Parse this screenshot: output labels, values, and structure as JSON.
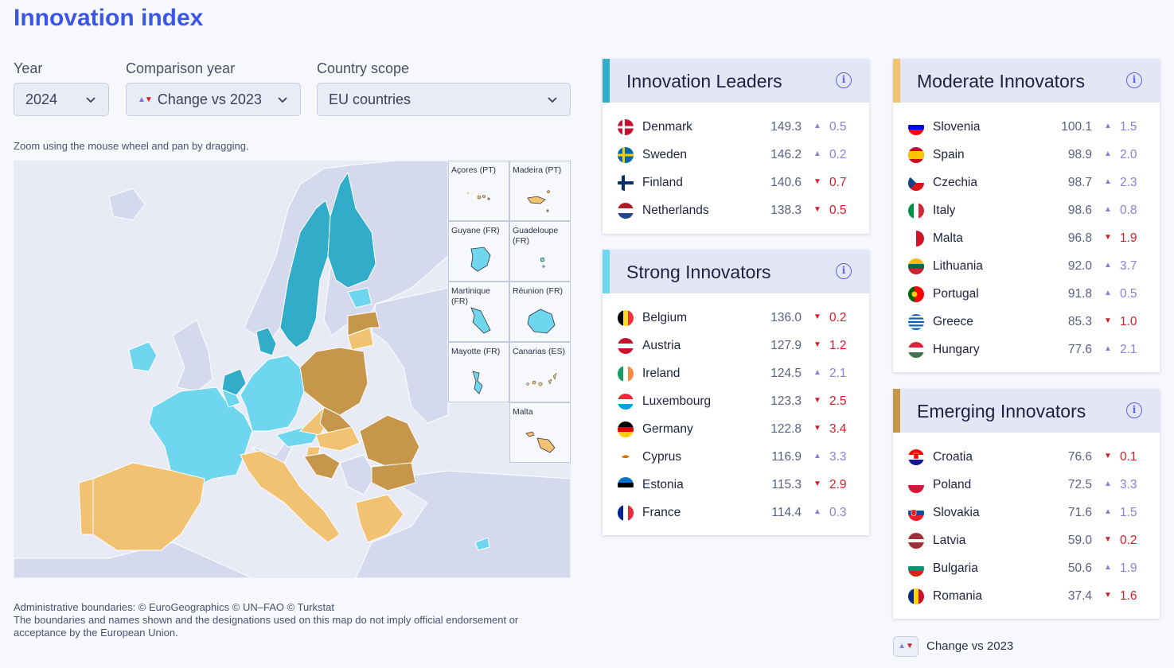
{
  "page": {
    "title": "Innovation index"
  },
  "filters": {
    "year": {
      "label": "Year",
      "value": "2024"
    },
    "comparison": {
      "label": "Comparison year",
      "value": "Change vs 2023"
    },
    "scope": {
      "label": "Country scope",
      "value": "EU countries"
    }
  },
  "map": {
    "zoom_note": "Zoom using the mouse wheel and pan by dragging.",
    "insets": [
      {
        "label": "Açores (PT)"
      },
      {
        "label": "Madeira (PT)"
      },
      {
        "label": "Guyane (FR)"
      },
      {
        "label": "Guadeloupe (FR)"
      },
      {
        "label": "Martinique (FR)"
      },
      {
        "label": "Réunion (FR)"
      },
      {
        "label": "Mayotte (FR)"
      },
      {
        "label": "Canarias (ES)"
      },
      {
        "label": "Malta"
      }
    ],
    "footnote_line1": "Administrative boundaries: © EuroGeographics © UN–FAO © Turkstat",
    "footnote_line2": "The boundaries and names shown and the designations used on this map do not imply official endorsement or acceptance by the European Union."
  },
  "colors": {
    "leaders": "#31acc9",
    "strong": "#6fd6f0",
    "moderate": "#f2c273",
    "emerging": "#c6974a",
    "non_eu": "#d5d9ee",
    "sea": "#e8eaf6",
    "up_arrow": "#8a80db",
    "down_arrow": "#d11e2a"
  },
  "groups": {
    "leaders": {
      "title": "Innovation Leaders",
      "rows": [
        {
          "country": "Denmark",
          "score": "149.3",
          "dir": "up",
          "change": "0.5"
        },
        {
          "country": "Sweden",
          "score": "146.2",
          "dir": "up",
          "change": "0.2"
        },
        {
          "country": "Finland",
          "score": "140.6",
          "dir": "down",
          "change": "0.7"
        },
        {
          "country": "Netherlands",
          "score": "138.3",
          "dir": "down",
          "change": "0.5"
        }
      ]
    },
    "strong": {
      "title": "Strong Innovators",
      "rows": [
        {
          "country": "Belgium",
          "score": "136.0",
          "dir": "down",
          "change": "0.2"
        },
        {
          "country": "Austria",
          "score": "127.9",
          "dir": "down",
          "change": "1.2"
        },
        {
          "country": "Ireland",
          "score": "124.5",
          "dir": "up",
          "change": "2.1"
        },
        {
          "country": "Luxembourg",
          "score": "123.3",
          "dir": "down",
          "change": "2.5"
        },
        {
          "country": "Germany",
          "score": "122.8",
          "dir": "down",
          "change": "3.4"
        },
        {
          "country": "Cyprus",
          "score": "116.9",
          "dir": "up",
          "change": "3.3"
        },
        {
          "country": "Estonia",
          "score": "115.3",
          "dir": "down",
          "change": "2.9"
        },
        {
          "country": "France",
          "score": "114.4",
          "dir": "up",
          "change": "0.3"
        }
      ]
    },
    "moderate": {
      "title": "Moderate Innovators",
      "rows": [
        {
          "country": "Slovenia",
          "score": "100.1",
          "dir": "up",
          "change": "1.5"
        },
        {
          "country": "Spain",
          "score": "98.9",
          "dir": "up",
          "change": "2.0"
        },
        {
          "country": "Czechia",
          "score": "98.7",
          "dir": "up",
          "change": "2.3"
        },
        {
          "country": "Italy",
          "score": "98.6",
          "dir": "up",
          "change": "0.8"
        },
        {
          "country": "Malta",
          "score": "96.8",
          "dir": "down",
          "change": "1.9"
        },
        {
          "country": "Lithuania",
          "score": "92.0",
          "dir": "up",
          "change": "3.7"
        },
        {
          "country": "Portugal",
          "score": "91.8",
          "dir": "up",
          "change": "0.5"
        },
        {
          "country": "Greece",
          "score": "85.3",
          "dir": "down",
          "change": "1.0"
        },
        {
          "country": "Hungary",
          "score": "77.6",
          "dir": "up",
          "change": "2.1"
        }
      ]
    },
    "emerging": {
      "title": "Emerging Innovators",
      "rows": [
        {
          "country": "Croatia",
          "score": "76.6",
          "dir": "down",
          "change": "0.1"
        },
        {
          "country": "Poland",
          "score": "72.5",
          "dir": "up",
          "change": "3.3"
        },
        {
          "country": "Slovakia",
          "score": "71.6",
          "dir": "up",
          "change": "1.5"
        },
        {
          "country": "Latvia",
          "score": "59.0",
          "dir": "down",
          "change": "0.2"
        },
        {
          "country": "Bulgaria",
          "score": "50.6",
          "dir": "up",
          "change": "1.9"
        },
        {
          "country": "Romania",
          "score": "37.4",
          "dir": "down",
          "change": "1.6"
        }
      ]
    }
  },
  "legend": {
    "label": "Change vs 2023"
  }
}
